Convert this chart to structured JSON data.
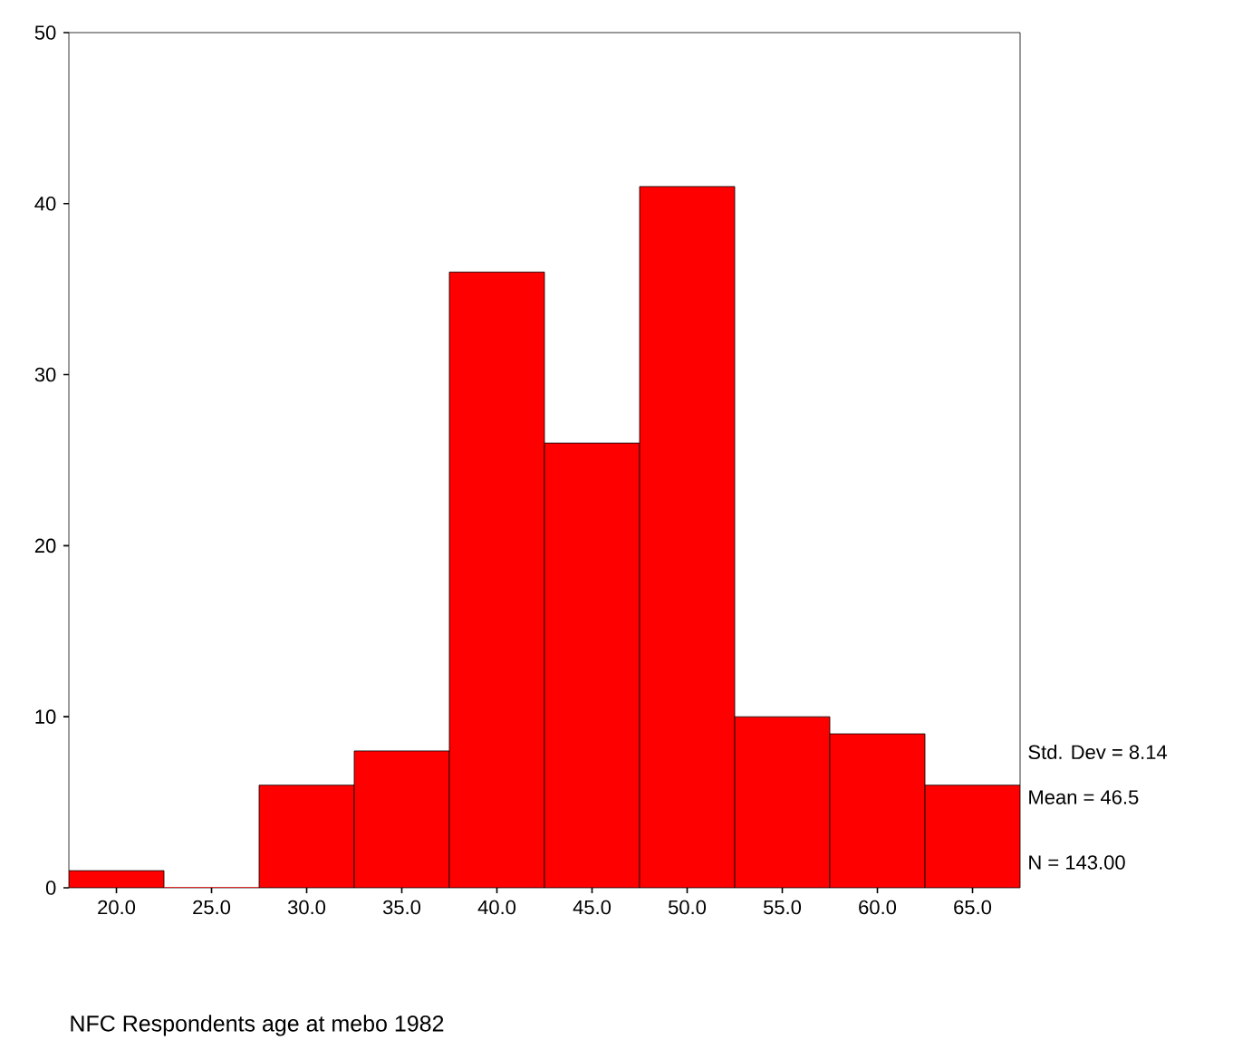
{
  "chart_data": {
    "type": "histogram",
    "xlabel": "NFC Respondents age at mebo 1982",
    "bins": [
      17.5,
      22.5,
      27.5,
      32.5,
      37.5,
      42.5,
      47.5,
      52.5,
      57.5,
      62.5,
      67.5
    ],
    "values": [
      1,
      0,
      6,
      8,
      36,
      26,
      41,
      10,
      9,
      6
    ],
    "color": "#ff0000",
    "xlim": [
      17.5,
      67.5
    ],
    "xticks": [
      {
        "value": 20,
        "label": "20.0"
      },
      {
        "value": 25,
        "label": "25.0"
      },
      {
        "value": 30,
        "label": "30.0"
      },
      {
        "value": 35,
        "label": "35.0"
      },
      {
        "value": 40,
        "label": "40.0"
      },
      {
        "value": 45,
        "label": "45.0"
      },
      {
        "value": 50,
        "label": "50.0"
      },
      {
        "value": 55,
        "label": "55.0"
      },
      {
        "value": 60,
        "label": "60.0"
      },
      {
        "value": 65,
        "label": "65.0"
      }
    ],
    "ylim": [
      0,
      50
    ],
    "yticks": [
      0,
      10,
      20,
      30,
      40,
      50
    ],
    "grid": false,
    "annotations": [
      "Std. Dev = 8.14",
      "Mean = 46.5",
      "N = 143.00"
    ]
  }
}
